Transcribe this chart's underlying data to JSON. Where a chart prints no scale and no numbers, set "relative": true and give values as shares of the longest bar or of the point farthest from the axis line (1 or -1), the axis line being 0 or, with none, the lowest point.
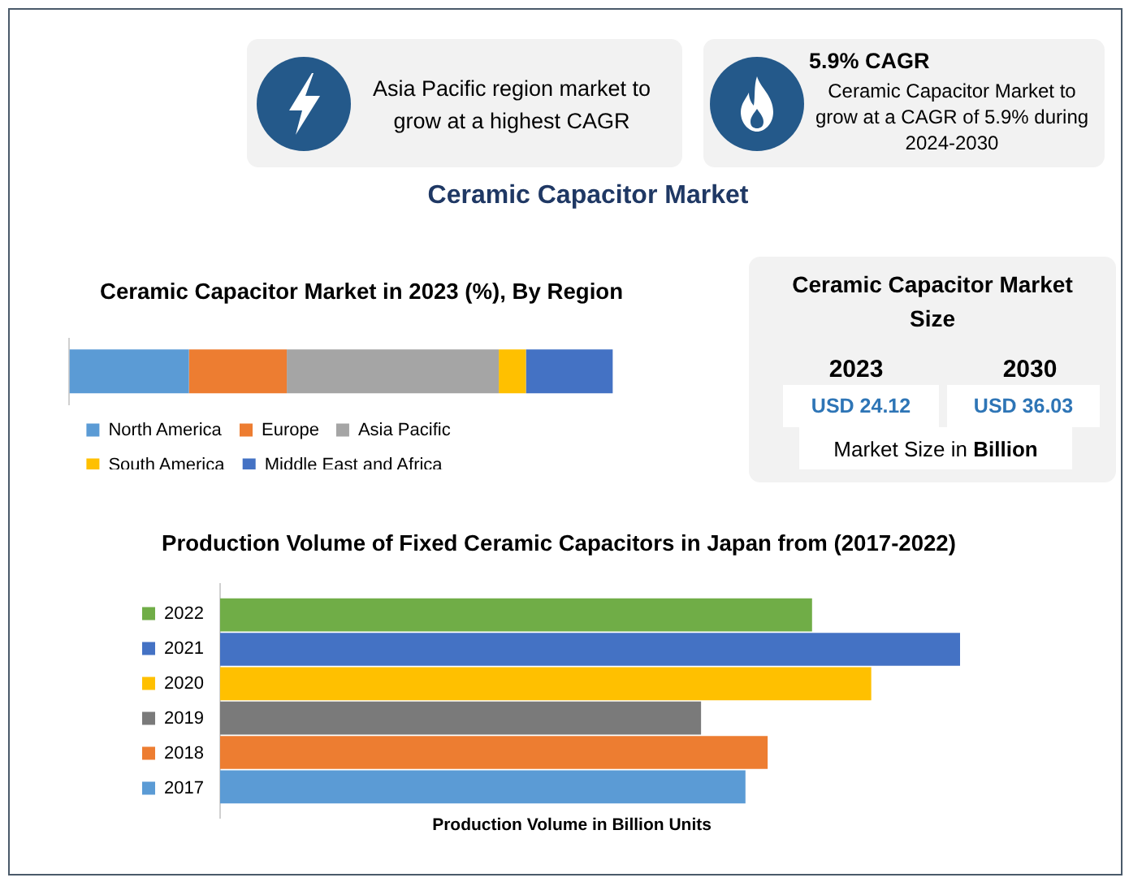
{
  "chart_data": [
    {
      "type": "other",
      "annotations": [
        "Asia Pacific region market to grow at a highest CAGR"
      ]
    },
    {
      "type": "other",
      "title": "5.9% CAGR",
      "annotations": [
        "Ceramic Capacitor Market to grow at a CAGR of 5.9% during 2024-2030"
      ]
    },
    {
      "type": "other",
      "title": "Ceramic Capacitor Market"
    },
    {
      "type": "bar",
      "title": "Ceramic Capacitor Market in 2023 (%), By Region",
      "orientation": "horizontal",
      "stacked": true,
      "relative": true,
      "categories": [
        null
      ],
      "series": [
        {
          "name": "North America",
          "color": "#5b9bd5",
          "values": [
            0.22
          ]
        },
        {
          "name": "Europe",
          "color": "#ed7d31",
          "values": [
            0.18
          ]
        },
        {
          "name": "Asia Pacific",
          "color": "#a5a5a5",
          "values": [
            0.39
          ]
        },
        {
          "name": "South America",
          "color": "#ffc000",
          "values": [
            0.05
          ]
        },
        {
          "name": "Middle East and Africa",
          "color": "#4472c4",
          "values": [
            0.16
          ]
        }
      ],
      "legend": "bottom"
    },
    {
      "type": "other",
      "title": "Ceramic Capacitor Market Size",
      "annotations": [
        "2023",
        "USD 24.12",
        "2030",
        "USD 36.03",
        "Market Size in Billion"
      ]
    },
    {
      "type": "bar",
      "title": "Production Volume of Fixed Ceramic Capacitors in Japan from (2017-2022)",
      "xlabel": "Production Volume in Billion Units",
      "orientation": "horizontal",
      "relative": true,
      "categories": [
        null
      ],
      "series": [
        {
          "name": "2022",
          "color": "#70ad47",
          "values": [
            0.8
          ]
        },
        {
          "name": "2021",
          "color": "#4472c4",
          "values": [
            1
          ]
        },
        {
          "name": "2020",
          "color": "#ffc000",
          "values": [
            0.88
          ]
        },
        {
          "name": "2019",
          "color": "#7a7a7a",
          "values": [
            0.65
          ]
        },
        {
          "name": "2018",
          "color": "#ed7d31",
          "values": [
            0.74
          ]
        },
        {
          "name": "2017",
          "color": "#5b9bd5",
          "values": [
            0.71
          ]
        }
      ],
      "legend": "left"
    }
  ]
}
